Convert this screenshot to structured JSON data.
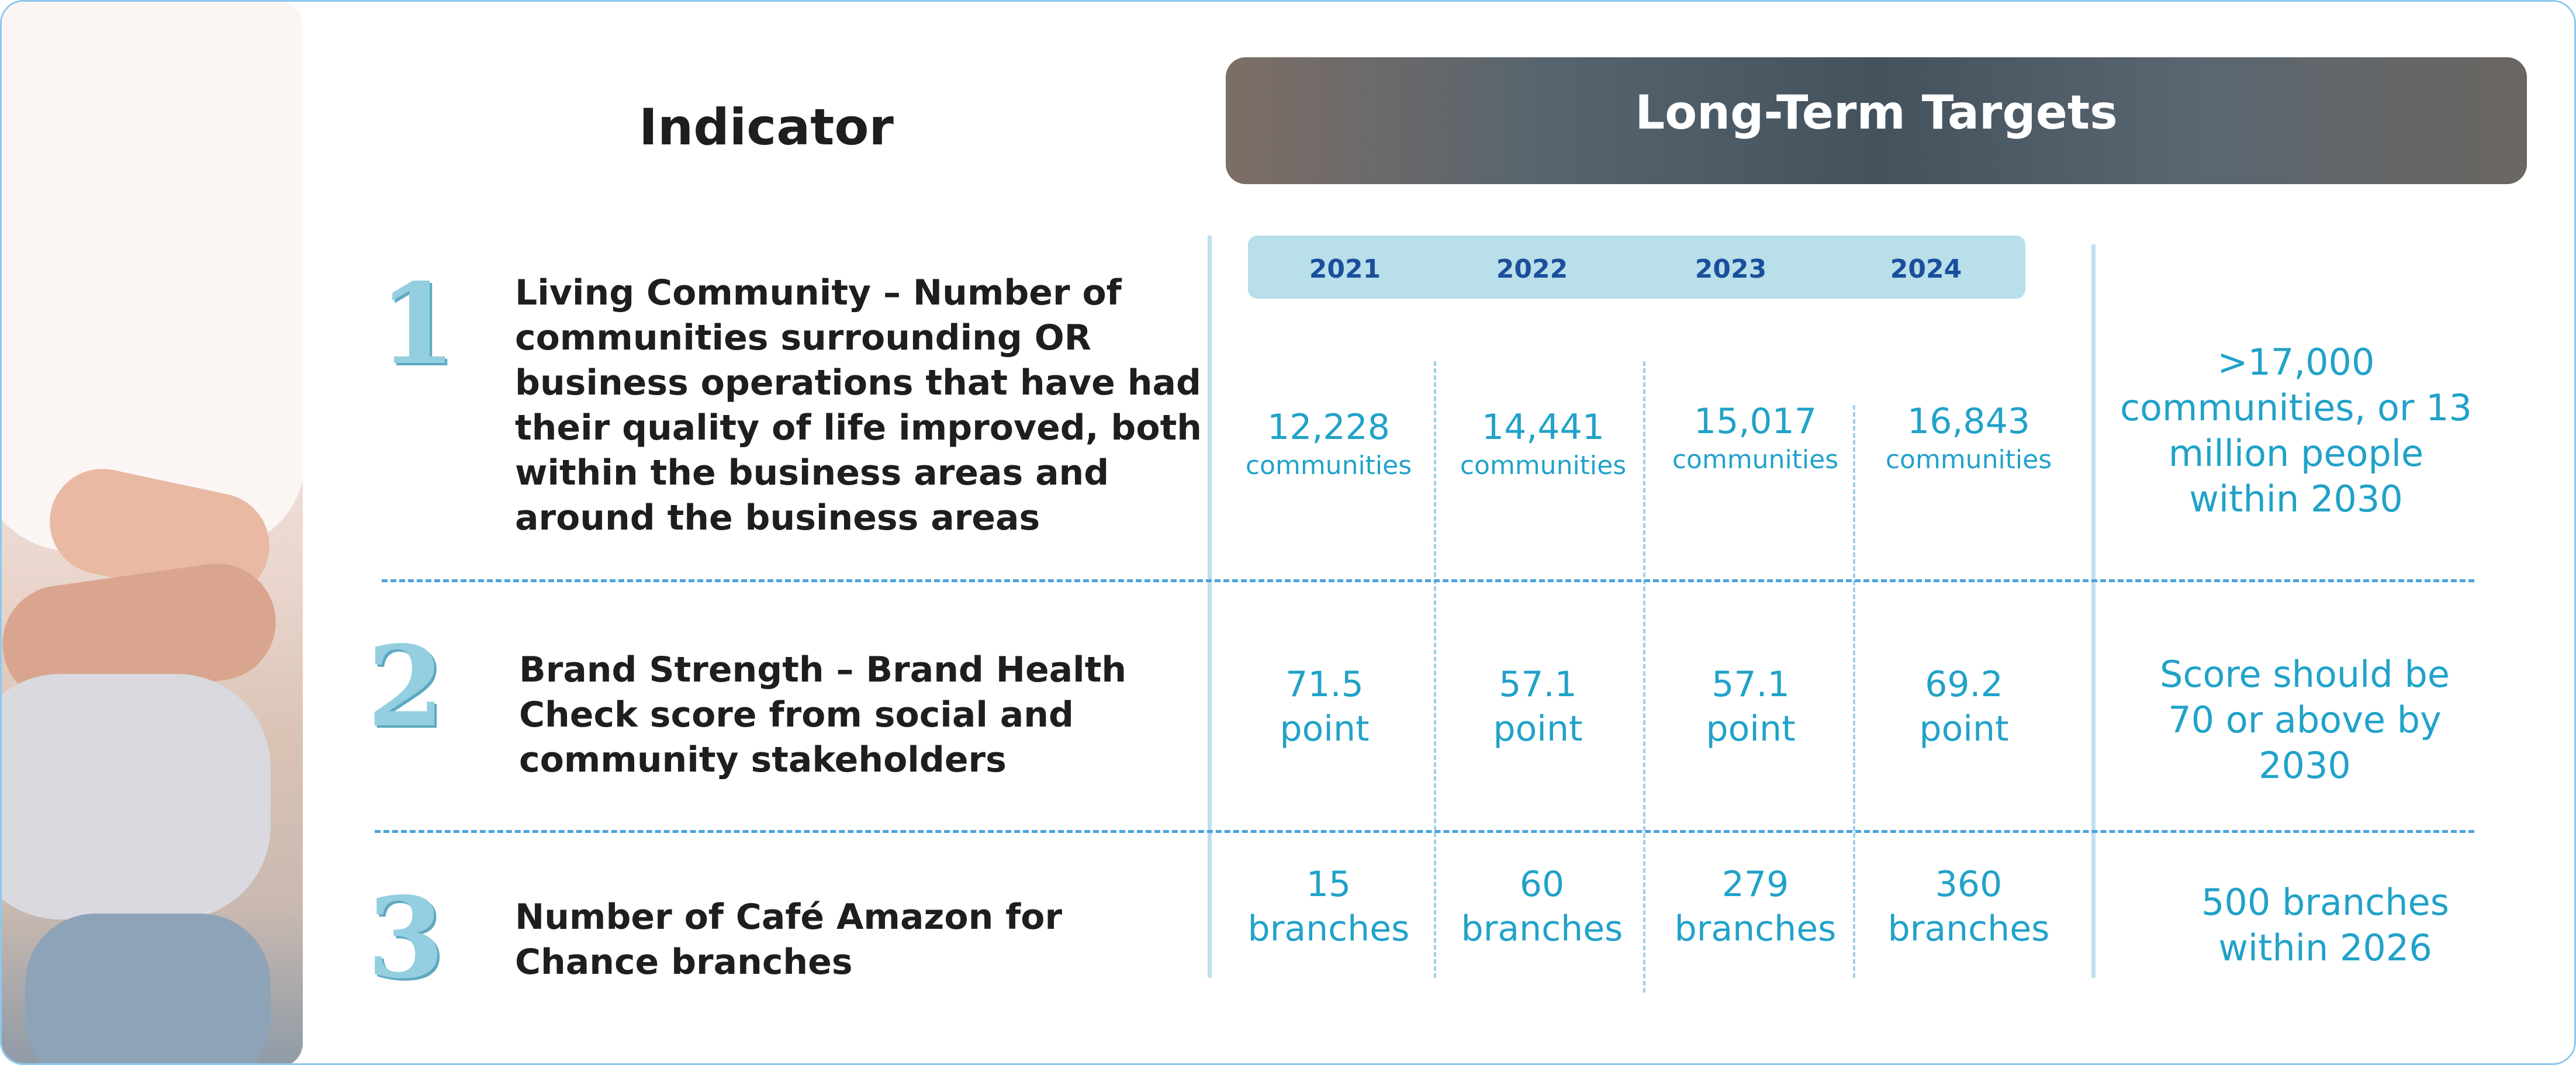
{
  "header": {
    "indicator_label": "Indicator",
    "targets_label": "Long-Term Targets"
  },
  "years": [
    "2021",
    "2022",
    "2023",
    "2024"
  ],
  "rows": [
    {
      "number": "1",
      "indicator_lines": [
        "Living Community – Number of",
        "communities surrounding OR",
        "business operations that have had",
        "their quality of life improved, both",
        "within the business areas and",
        "around the business areas"
      ],
      "values": [
        {
          "value": "12,228",
          "unit": "communities"
        },
        {
          "value": "14,441",
          "unit": "communities"
        },
        {
          "value": "15,017",
          "unit": "communities"
        },
        {
          "value": "16,843",
          "unit": "communities"
        }
      ],
      "target_lines": [
        ">17,000",
        "communities, or 13",
        "million people",
        "within 2030"
      ]
    },
    {
      "number": "2",
      "indicator_lines": [
        "Brand Strength – Brand Health",
        "Check score from social and",
        "community stakeholders"
      ],
      "values": [
        {
          "value": "71.5",
          "unit": "point"
        },
        {
          "value": "57.1",
          "unit": "point"
        },
        {
          "value": "57.1",
          "unit": "point"
        },
        {
          "value": "69.2",
          "unit": "point"
        }
      ],
      "target_lines": [
        "Score should be",
        "70 or above by",
        "2030"
      ]
    },
    {
      "number": "3",
      "indicator_lines": [
        "Number of Café Amazon for",
        "Chance branches"
      ],
      "values": [
        {
          "value": "15",
          "unit": "branches"
        },
        {
          "value": "60",
          "unit": "branches"
        },
        {
          "value": "279",
          "unit": "branches"
        },
        {
          "value": "360",
          "unit": "branches"
        }
      ],
      "target_lines": [
        "500 branches",
        "within 2026"
      ]
    }
  ]
}
